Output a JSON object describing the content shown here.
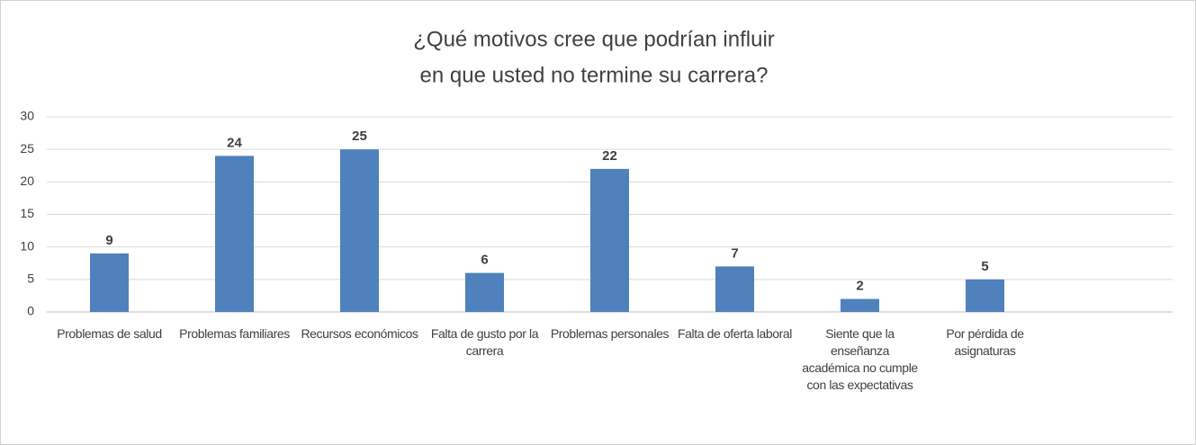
{
  "chart_data": {
    "type": "bar",
    "title": [
      "¿Qué motivos cree que podrían influir",
      "en que usted no termine su carrera?"
    ],
    "categories": [
      "Problemas de salud",
      "Problemas familiares",
      "Recursos económicos",
      "Falta de gusto por la carrera",
      "Problemas personales",
      "Falta de oferta laboral",
      "Siente que la enseñanza académica no cumple con las expectativas",
      "Por pérdida de asignaturas",
      null
    ],
    "values": [
      9,
      24,
      25,
      6,
      22,
      7,
      2,
      5,
      null
    ],
    "color": "#4f81bd",
    "ylim": [
      0,
      30
    ],
    "yticks": [
      0,
      5,
      10,
      15,
      20,
      25,
      30
    ],
    "grid": true
  }
}
